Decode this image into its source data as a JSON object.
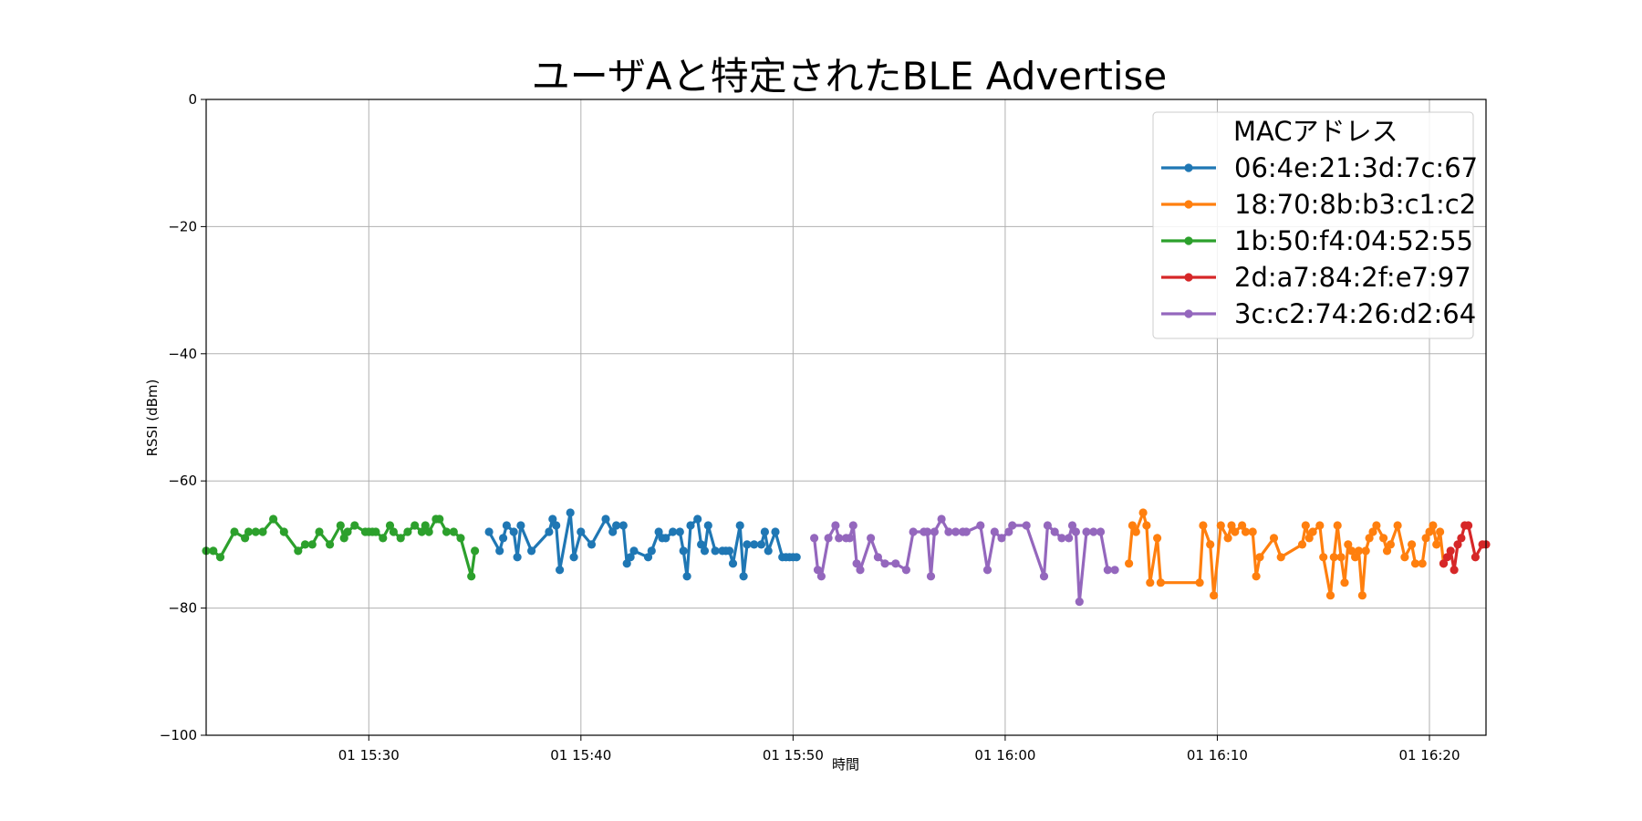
{
  "chart_data": {
    "type": "line",
    "title": "ユーザAと特定されたBLE Advertise",
    "xlabel": "時間",
    "ylabel": "RSSI (dBm)",
    "xlim": [
      "15:22:20",
      "16:22:40"
    ],
    "ylim": [
      -100,
      0
    ],
    "x_ticks": [
      "01 15:30",
      "01 15:40",
      "01 15:50",
      "01 16:00",
      "01 16:10",
      "01 16:20"
    ],
    "y_ticks": [
      "0",
      "−20",
      "−40",
      "−60",
      "−80",
      "−100"
    ],
    "grid": true,
    "legend": {
      "title": "MACアドレス",
      "placement": "top-right"
    },
    "series": [
      {
        "name": "06:4e:21:3d:7c:67",
        "color": "#1f77b4",
        "x": [
          "15:35:40",
          "15:36:10",
          "15:36:20",
          "15:36:30",
          "15:36:50",
          "15:37:00",
          "15:37:10",
          "15:37:40",
          "15:38:30",
          "15:38:40",
          "15:38:50",
          "15:39:00",
          "15:39:30",
          "15:39:40",
          "15:40:00",
          "15:40:30",
          "15:41:10",
          "15:41:30",
          "15:41:40",
          "15:42:00",
          "15:42:10",
          "15:42:20",
          "15:42:30",
          "15:43:10",
          "15:43:20",
          "15:43:40",
          "15:43:50",
          "15:44:00",
          "15:44:20",
          "15:44:40",
          "15:44:50",
          "15:45:00",
          "15:45:10",
          "15:45:30",
          "15:45:40",
          "15:45:50",
          "15:46:00",
          "15:46:20",
          "15:46:40",
          "15:46:50",
          "15:47:00",
          "15:47:10",
          "15:47:30",
          "15:47:40",
          "15:47:50",
          "15:48:10",
          "15:48:30",
          "15:48:40",
          "15:48:50",
          "15:49:10",
          "15:49:30",
          "15:49:40",
          "15:49:50",
          "15:50:00",
          "15:50:10"
        ],
        "y": [
          -68,
          -71,
          -69,
          -67,
          -68,
          -72,
          -67,
          -71,
          -68,
          -66,
          -67,
          -74,
          -65,
          -72,
          -68,
          -70,
          -66,
          -68,
          -67,
          -67,
          -73,
          -72,
          -71,
          -72,
          -71,
          -68,
          -69,
          -69,
          -68,
          -68,
          -71,
          -75,
          -67,
          -66,
          -70,
          -71,
          -67,
          -71,
          -71,
          -71,
          -71,
          -73,
          -67,
          -75,
          -70,
          -70,
          -70,
          -68,
          -71,
          -68,
          -72,
          -72,
          -72,
          -72,
          -72
        ]
      },
      {
        "name": "18:70:8b:b3:c1:c2",
        "color": "#ff7f0e",
        "x": [
          "16:05:50",
          "16:06:00",
          "16:06:10",
          "16:06:30",
          "16:06:40",
          "16:06:50",
          "16:07:10",
          "16:07:20",
          "16:09:10",
          "16:09:20",
          "16:09:40",
          "16:09:50",
          "16:10:10",
          "16:10:30",
          "16:10:40",
          "16:10:50",
          "16:11:10",
          "16:11:20",
          "16:11:40",
          "16:11:50",
          "16:12:00",
          "16:12:40",
          "16:13:00",
          "16:14:00",
          "16:14:10",
          "16:14:20",
          "16:14:30",
          "16:14:50",
          "16:15:00",
          "16:15:20",
          "16:15:30",
          "16:15:40",
          "16:15:50",
          "16:16:00",
          "16:16:10",
          "16:16:20",
          "16:16:30",
          "16:16:40",
          "16:16:50",
          "16:17:00",
          "16:17:10",
          "16:17:20",
          "16:17:30",
          "16:17:50",
          "16:18:00",
          "16:18:10",
          "16:18:30",
          "16:18:50",
          "16:19:10",
          "16:19:20",
          "16:19:40",
          "16:19:50",
          "16:20:00",
          "16:20:10",
          "16:20:20",
          "16:20:30",
          "16:20:40"
        ],
        "y": [
          -73,
          -67,
          -68,
          -65,
          -67,
          -76,
          -69,
          -76,
          -76,
          -67,
          -70,
          -78,
          -67,
          -69,
          -67,
          -68,
          -67,
          -68,
          -68,
          -75,
          -72,
          -69,
          -72,
          -70,
          -67,
          -69,
          -68,
          -67,
          -72,
          -78,
          -72,
          -67,
          -72,
          -76,
          -70,
          -71,
          -72,
          -71,
          -78,
          -71,
          -69,
          -68,
          -67,
          -69,
          -71,
          -70,
          -67,
          -72,
          -70,
          -73,
          -73,
          -69,
          -68,
          -67,
          -70,
          -68,
          -73
        ]
      },
      {
        "name": "1b:50:f4:04:52:55",
        "color": "#2ca02c",
        "x": [
          "15:22:20",
          "15:22:40",
          "15:23:00",
          "15:23:40",
          "15:24:10",
          "15:24:20",
          "15:24:40",
          "15:25:00",
          "15:25:30",
          "15:26:00",
          "15:26:40",
          "15:27:00",
          "15:27:20",
          "15:27:40",
          "15:28:10",
          "15:28:40",
          "15:28:50",
          "15:29:00",
          "15:29:20",
          "15:29:50",
          "15:30:00",
          "15:30:10",
          "15:30:20",
          "15:30:40",
          "15:31:00",
          "15:31:10",
          "15:31:30",
          "15:31:50",
          "15:32:10",
          "15:32:30",
          "15:32:40",
          "15:32:50",
          "15:33:10",
          "15:33:20",
          "15:33:40",
          "15:34:00",
          "15:34:20",
          "15:34:50",
          "15:35:00"
        ],
        "y": [
          -71,
          -71,
          -72,
          -68,
          -69,
          -68,
          -68,
          -68,
          -66,
          -68,
          -71,
          -70,
          -70,
          -68,
          -70,
          -67,
          -69,
          -68,
          -67,
          -68,
          -68,
          -68,
          -68,
          -69,
          -67,
          -68,
          -69,
          -68,
          -67,
          -68,
          -67,
          -68,
          -66,
          -66,
          -68,
          -68,
          -69,
          -75,
          -71
        ]
      },
      {
        "name": "2d:a7:84:2f:e7:97",
        "color": "#d62728",
        "x": [
          "16:20:40",
          "16:20:50",
          "16:21:00",
          "16:21:10",
          "16:21:20",
          "16:21:30",
          "16:21:40",
          "16:21:50",
          "16:22:10",
          "16:22:30",
          "16:22:40"
        ],
        "y": [
          -73,
          -72,
          -71,
          -74,
          -70,
          -69,
          -67,
          -67,
          -72,
          -70,
          -70
        ]
      },
      {
        "name": "3c:c2:74:26:d2:64",
        "color": "#9467bd",
        "x": [
          "15:51:00",
          "15:51:10",
          "15:51:20",
          "15:51:40",
          "15:52:00",
          "15:52:10",
          "15:52:30",
          "15:52:40",
          "15:52:50",
          "15:53:00",
          "15:53:10",
          "15:53:40",
          "15:54:00",
          "15:54:20",
          "15:54:50",
          "15:55:20",
          "15:55:40",
          "15:56:10",
          "15:56:20",
          "15:56:30",
          "15:56:40",
          "15:57:00",
          "15:57:20",
          "15:57:40",
          "15:58:00",
          "15:58:10",
          "15:58:50",
          "15:59:10",
          "15:59:30",
          "15:59:50",
          "16:00:10",
          "16:00:20",
          "16:01:00",
          "16:01:50",
          "16:02:00",
          "16:02:20",
          "16:02:40",
          "16:03:00",
          "16:03:10",
          "16:03:20",
          "16:03:30",
          "16:03:50",
          "16:04:10",
          "16:04:30",
          "16:04:50",
          "16:05:10"
        ],
        "y": [
          -69,
          -74,
          -75,
          -69,
          -67,
          -69,
          -69,
          -69,
          -67,
          -73,
          -74,
          -69,
          -72,
          -73,
          -73,
          -74,
          -68,
          -68,
          -68,
          -75,
          -68,
          -66,
          -68,
          -68,
          -68,
          -68,
          -67,
          -74,
          -68,
          -69,
          -68,
          -67,
          -67,
          -75,
          -67,
          -68,
          -69,
          -69,
          -67,
          -68,
          -79,
          -68,
          -68,
          -68,
          -74,
          -74
        ]
      }
    ]
  }
}
